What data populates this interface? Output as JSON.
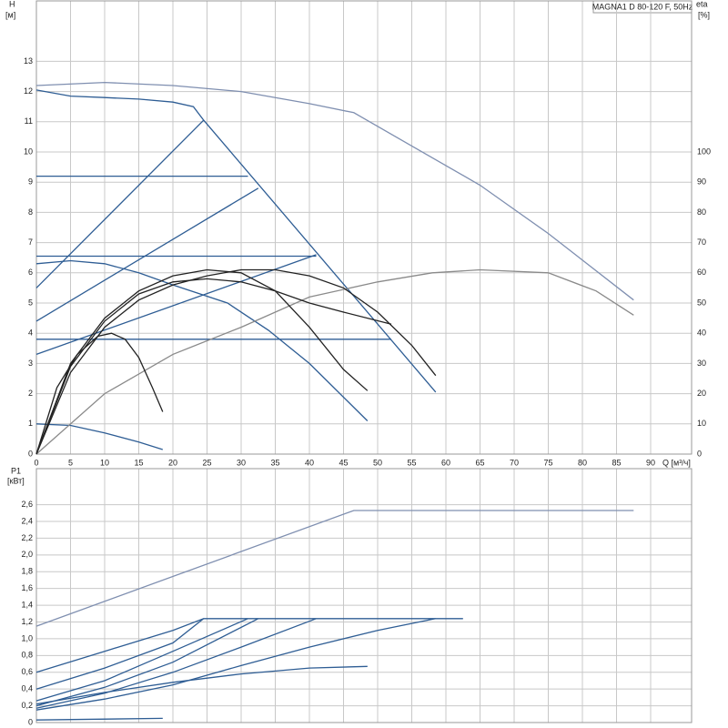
{
  "chart_data": [
    {
      "type": "line",
      "title": "MAGNA1 D 80-120 F, 50Hz",
      "y_label": "H",
      "y_unit": "[м]",
      "y2_label": "eta",
      "y2_unit": "[%]",
      "x_label": "Q [м³/ч]",
      "xlim": [
        0,
        96
      ],
      "xticks": [
        0,
        5,
        10,
        15,
        20,
        25,
        30,
        35,
        40,
        45,
        50,
        55,
        60,
        65,
        70,
        75,
        80,
        85,
        90
      ],
      "ylim": [
        0,
        15
      ],
      "yticks": [
        0,
        1,
        2,
        3,
        4,
        5,
        6,
        7,
        8,
        9,
        10,
        11,
        12,
        13
      ],
      "y2lim": [
        0,
        150
      ],
      "y2ticks": [
        0,
        10,
        20,
        30,
        40,
        50,
        60,
        70,
        80,
        90,
        100
      ],
      "grid": true,
      "series": [
        {
          "color": "#7f8fb0",
          "x": [
            0,
            10,
            20,
            30,
            40,
            46.5,
            55,
            65,
            75,
            87.5
          ],
          "values": [
            12.2,
            12.3,
            12.2,
            12.0,
            11.6,
            11.3,
            10.2,
            8.9,
            7.3,
            5.1
          ]
        },
        {
          "color": "#2e5d94",
          "x": [
            0,
            5,
            10,
            15,
            20,
            23,
            24.5,
            58.5
          ],
          "values": [
            12.05,
            11.85,
            11.8,
            11.75,
            11.65,
            11.5,
            11.05,
            2.05
          ]
        },
        {
          "color": "#2e5d94",
          "x": [
            0,
            24.5
          ],
          "values": [
            5.5,
            11.05
          ]
        },
        {
          "color": "#2e5d94",
          "x": [
            0,
            32.5
          ],
          "values": [
            4.4,
            8.8
          ]
        },
        {
          "color": "#2e5d94",
          "x": [
            0,
            41
          ],
          "values": [
            3.3,
            6.6
          ]
        },
        {
          "color": "#2e5d94",
          "x": [
            0,
            31
          ],
          "values": [
            9.2,
            9.2
          ]
        },
        {
          "color": "#2e5d94",
          "x": [
            0,
            41
          ],
          "values": [
            6.55,
            6.55
          ]
        },
        {
          "color": "#2e5d94",
          "x": [
            0,
            52
          ],
          "values": [
            3.8,
            3.8
          ]
        },
        {
          "color": "#2e5d94",
          "x": [
            0,
            5,
            10,
            15,
            20,
            28,
            34,
            40,
            48.5
          ],
          "values": [
            6.3,
            6.4,
            6.3,
            6.0,
            5.6,
            5.0,
            4.1,
            3.0,
            1.1
          ]
        },
        {
          "color": "#2e5d94",
          "x": [
            0,
            5,
            10,
            15,
            18.5
          ],
          "values": [
            1.0,
            0.95,
            0.7,
            0.4,
            0.15
          ]
        },
        {
          "color": "#8a8a8a",
          "axis": "y2",
          "x": [
            0,
            10,
            20,
            30,
            40,
            50,
            58,
            65,
            75,
            82,
            87.5
          ],
          "values": [
            0,
            20,
            33,
            42,
            52,
            57,
            60,
            61,
            60,
            54,
            46
          ]
        },
        {
          "color": "#222222",
          "axis": "y2",
          "x": [
            0,
            3,
            6,
            9,
            11,
            13,
            15,
            17,
            18.5
          ],
          "values": [
            0,
            22,
            33,
            39,
            40,
            38,
            32,
            22,
            14
          ]
        },
        {
          "color": "#222222",
          "axis": "y2",
          "x": [
            0,
            5,
            10,
            15,
            20,
            25,
            30,
            35,
            40,
            45,
            48.5
          ],
          "values": [
            0,
            30,
            45,
            54,
            59,
            61,
            60,
            54,
            42,
            28,
            21
          ]
        },
        {
          "color": "#222222",
          "axis": "y2",
          "x": [
            0,
            5,
            10,
            15,
            20,
            25,
            30,
            35,
            40,
            45,
            52
          ],
          "values": [
            0,
            29,
            44,
            53,
            57,
            58,
            57,
            54,
            50,
            47,
            43
          ]
        },
        {
          "color": "#222222",
          "axis": "y2",
          "x": [
            0,
            5,
            10,
            15,
            20,
            25,
            30,
            35,
            40,
            45,
            50,
            55,
            58.5
          ],
          "values": [
            0,
            27,
            42,
            51,
            56,
            59,
            61,
            61,
            59,
            55,
            47,
            36,
            26
          ]
        }
      ]
    },
    {
      "type": "line",
      "y_label": "P1",
      "y_unit": "[кВт]",
      "xlim": [
        0,
        96
      ],
      "ylim": [
        0,
        3.03
      ],
      "yticks": [
        0,
        {
          "value": 0.2,
          "label": "0,2"
        },
        {
          "value": 0.4,
          "label": "0,4"
        },
        {
          "value": 0.6,
          "label": "0,6"
        },
        {
          "value": 0.8,
          "label": "0,8"
        },
        {
          "value": 1.0,
          "label": "1,0"
        },
        {
          "value": 1.2,
          "label": "1,2"
        },
        {
          "value": 1.4,
          "label": "1,4"
        },
        {
          "value": 1.6,
          "label": "1,6"
        },
        {
          "value": 1.8,
          "label": "1,8"
        },
        {
          "value": 2.0,
          "label": "2,0"
        },
        {
          "value": 2.2,
          "label": "2,2"
        },
        {
          "value": 2.4,
          "label": "2,4"
        },
        {
          "value": 2.6,
          "label": "2,6"
        }
      ],
      "grid": true,
      "series": [
        {
          "color": "#7f8fb0",
          "x": [
            0,
            46.5,
            87.5
          ],
          "values": [
            1.15,
            2.53,
            2.53
          ]
        },
        {
          "color": "#2e5d94",
          "x": [
            0,
            10,
            20,
            24.5,
            62.5
          ],
          "values": [
            0.6,
            0.85,
            1.1,
            1.24,
            1.24
          ]
        },
        {
          "color": "#2e5d94",
          "x": [
            0,
            10,
            20,
            24.5
          ],
          "values": [
            0.4,
            0.65,
            0.95,
            1.24
          ]
        },
        {
          "color": "#2e5d94",
          "x": [
            0,
            10,
            20,
            31
          ],
          "values": [
            0.26,
            0.5,
            0.85,
            1.24
          ]
        },
        {
          "color": "#2e5d94",
          "x": [
            0,
            10,
            20,
            32.5
          ],
          "values": [
            0.2,
            0.42,
            0.72,
            1.24
          ]
        },
        {
          "color": "#2e5d94",
          "x": [
            0,
            10,
            20,
            30,
            41
          ],
          "values": [
            0.17,
            0.35,
            0.6,
            0.9,
            1.24
          ]
        },
        {
          "color": "#2e5d94",
          "x": [
            0,
            10,
            20,
            30,
            40,
            50,
            58.5
          ],
          "values": [
            0.15,
            0.28,
            0.45,
            0.68,
            0.9,
            1.1,
            1.24
          ]
        },
        {
          "color": "#2e5d94",
          "x": [
            0,
            10,
            20,
            30,
            40,
            48.5
          ],
          "values": [
            0.22,
            0.36,
            0.48,
            0.58,
            0.65,
            0.67
          ]
        },
        {
          "color": "#2e5d94",
          "x": [
            0,
            18.5
          ],
          "values": [
            0.03,
            0.05
          ]
        }
      ]
    }
  ]
}
